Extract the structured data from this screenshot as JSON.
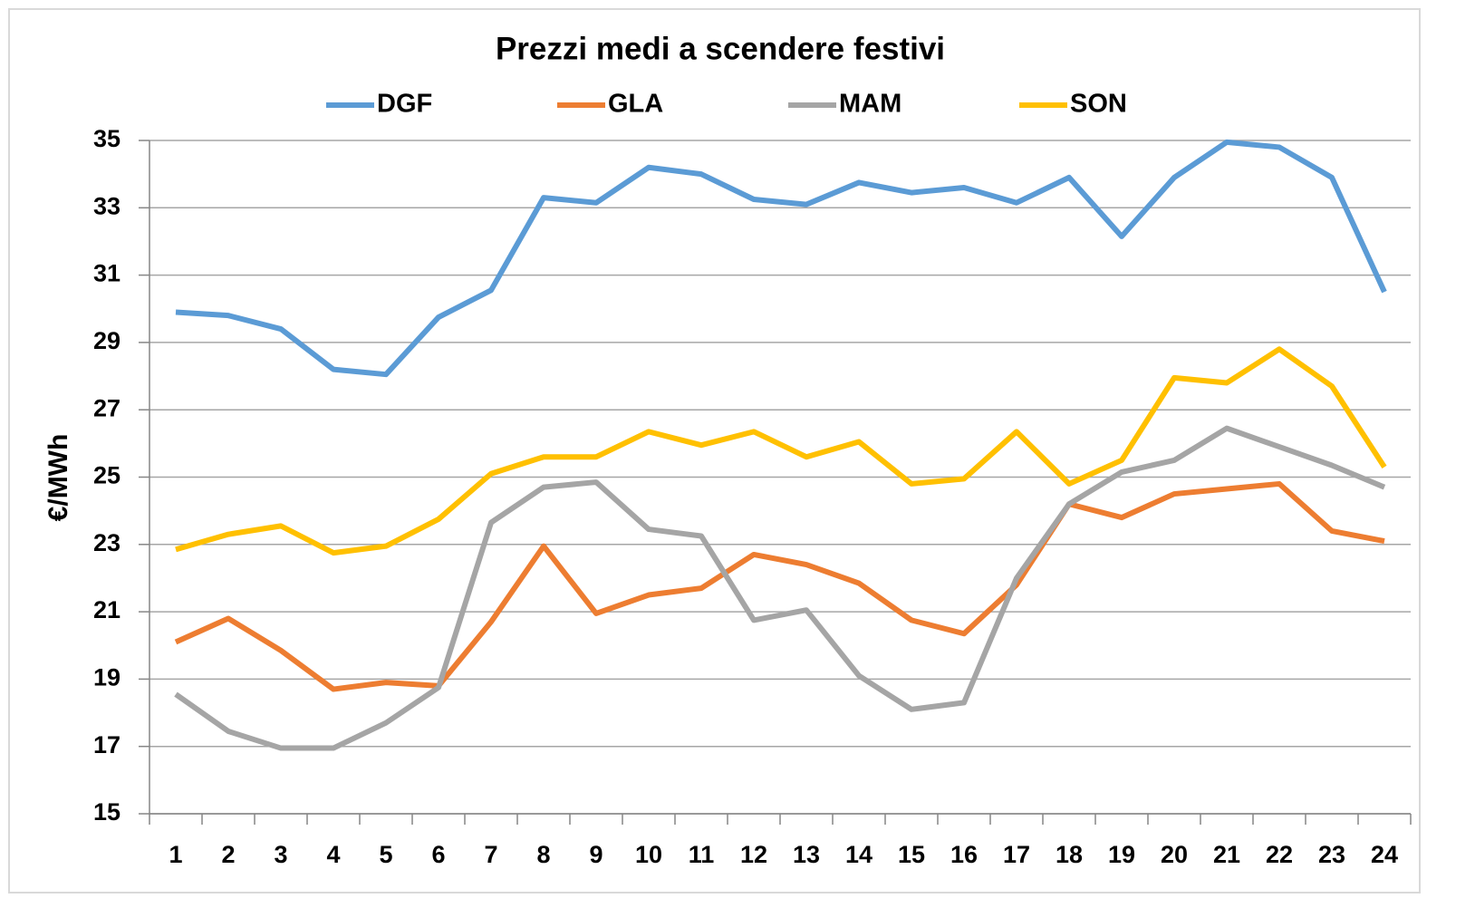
{
  "chart_data": {
    "type": "line",
    "title": "Prezzi medi a scendere festivi",
    "y_label": "€/MWh",
    "categories": [
      "1",
      "2",
      "3",
      "4",
      "5",
      "6",
      "7",
      "8",
      "9",
      "10",
      "11",
      "12",
      "13",
      "14",
      "15",
      "16",
      "17",
      "18",
      "19",
      "20",
      "21",
      "22",
      "23",
      "24"
    ],
    "series": [
      {
        "name": "DGF",
        "color": "#5b9bd5",
        "values": [
          29.9,
          29.8,
          29.4,
          28.2,
          28.05,
          29.75,
          30.55,
          33.3,
          33.15,
          34.2,
          34.0,
          33.25,
          33.1,
          33.75,
          33.45,
          33.6,
          33.15,
          33.9,
          32.15,
          33.9,
          34.95,
          34.8,
          33.9,
          30.5
        ]
      },
      {
        "name": "GLA",
        "color": "#ed7d31",
        "values": [
          20.1,
          20.8,
          19.85,
          18.7,
          18.9,
          18.8,
          20.7,
          22.95,
          20.95,
          21.5,
          21.7,
          22.7,
          22.4,
          21.85,
          20.75,
          20.35,
          21.8,
          24.2,
          23.8,
          24.5,
          24.65,
          24.8,
          23.4,
          23.1
        ]
      },
      {
        "name": "MAM",
        "color": "#a5a5a5",
        "values": [
          18.55,
          17.45,
          16.95,
          16.95,
          17.7,
          18.75,
          23.65,
          24.7,
          24.85,
          23.45,
          23.25,
          20.75,
          21.05,
          19.1,
          18.1,
          18.3,
          22.0,
          24.2,
          25.15,
          25.5,
          26.45,
          25.9,
          25.35,
          24.7
        ]
      },
      {
        "name": "SON",
        "color": "#ffc000",
        "values": [
          22.85,
          23.3,
          23.55,
          22.75,
          22.95,
          23.75,
          25.1,
          25.6,
          25.6,
          26.35,
          25.95,
          26.35,
          25.6,
          26.05,
          24.8,
          24.95,
          26.35,
          24.8,
          25.5,
          27.95,
          27.8,
          28.8,
          27.7,
          25.3
        ]
      }
    ],
    "ylim": [
      15,
      35
    ],
    "yticks": [
      15,
      17,
      19,
      21,
      23,
      25,
      27,
      29,
      31,
      33,
      35
    ],
    "grid": true,
    "legend": "top"
  }
}
